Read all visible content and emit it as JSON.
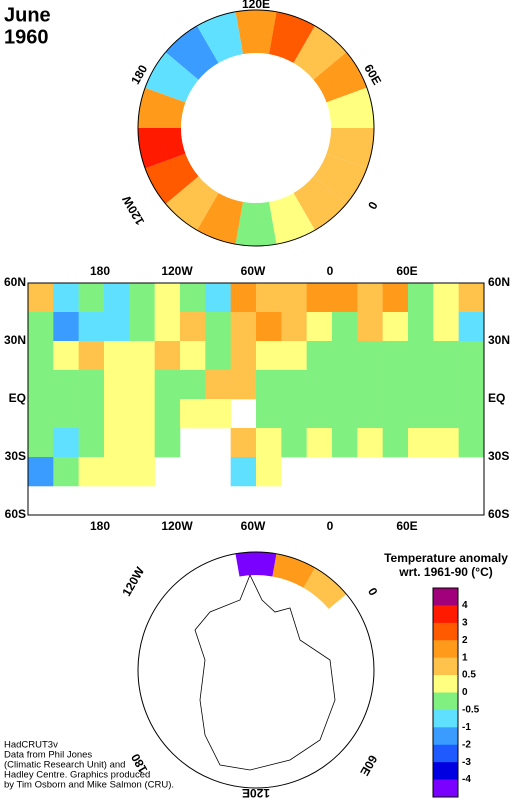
{
  "header": {
    "title": [
      "June",
      "1960"
    ]
  },
  "legend": {
    "title": [
      "Temperature anomaly",
      "wrt. 1961-90  (°C)"
    ],
    "levels": [
      4,
      3,
      2,
      1,
      0.5,
      0,
      -0.5,
      -1,
      -2,
      -3,
      -4
    ],
    "colors": [
      "#a0007a",
      "#ff1a00",
      "#ff5a00",
      "#ff9a1a",
      "#ffc24a",
      "#ffff80",
      "#80f080",
      "#60e0ff",
      "#3a9cff",
      "#1e5aff",
      "#0000e0",
      "#7a00ff"
    ]
  },
  "north_map": {
    "labels": [
      "120E",
      "60E",
      "0",
      "120W",
      "180"
    ],
    "ring": [
      1,
      2,
      0.5,
      1,
      0.3,
      0.5,
      0.5,
      0.7,
      0.3,
      -0.3,
      1.5,
      0.5,
      2,
      3,
      1,
      -0.7,
      -1.2,
      -0.7
    ]
  },
  "main_map": {
    "lon_labels": [
      "180",
      "120W",
      "60W",
      "0",
      "60E"
    ],
    "lat_labels": [
      "60N",
      "30N",
      "EQ",
      "30S",
      "60S"
    ],
    "cells": [
      [
        0.5,
        -1,
        -0.5,
        -1,
        -0.5,
        0.3,
        -0.5,
        -1,
        1,
        0.7,
        0.7,
        1.2,
        1.2,
        0.7,
        1.2,
        -0.5,
        0.3,
        0.7
      ],
      [
        -0.5,
        -1.2,
        -1,
        -1,
        -0.5,
        0.3,
        0.7,
        -0.5,
        0.7,
        1.2,
        0.7,
        0.3,
        -0.5,
        0.7,
        0.3,
        -0.5,
        0.3,
        -1
      ],
      [
        -0.3,
        0.3,
        0.7,
        0.3,
        0.3,
        0.7,
        0.3,
        -0.3,
        0.7,
        0.3,
        0.3,
        -0.5,
        -0.3,
        -0.5,
        -0.5,
        -0.3,
        -0.5,
        -0.5
      ],
      [
        -0.3,
        -0.3,
        -0.5,
        0.3,
        0.3,
        -0.3,
        -0.3,
        0.7,
        0.7,
        -0.3,
        -0.5,
        -0.3,
        -0.5,
        -0.3,
        -0.3,
        -0.3,
        -0.5,
        -0.3
      ],
      [
        -0.3,
        -0.5,
        -0.5,
        0.3,
        0.3,
        -0.3,
        0.3,
        0.3,
        null,
        -0.3,
        -0.5,
        -0.5,
        -0.3,
        -0.5,
        -0.5,
        -0.3,
        -0.5,
        -0.3
      ],
      [
        -0.5,
        -1,
        -0.5,
        0.3,
        0.3,
        -0.3,
        null,
        null,
        0.7,
        0.3,
        -0.5,
        0.3,
        -0.5,
        0.3,
        -0.3,
        0.3,
        0.3,
        -0.3
      ],
      [
        -1.2,
        -0.3,
        0.3,
        0.3,
        0.3,
        null,
        null,
        null,
        -1,
        0.3,
        null,
        null,
        null,
        null,
        null,
        null,
        null,
        null
      ],
      [
        null,
        null,
        null,
        null,
        null,
        null,
        null,
        null,
        null,
        null,
        null,
        null,
        null,
        null,
        null,
        null,
        null,
        null
      ]
    ]
  },
  "south_map": {
    "labels": [
      "120W",
      "0",
      "180",
      "60E",
      "120E"
    ],
    "ring": [
      null,
      null,
      null,
      null,
      null,
      null,
      null,
      null,
      null,
      -4.5,
      1.2,
      0.7,
      null,
      null,
      null,
      null,
      null,
      null
    ]
  },
  "credits": [
    "HadCRUT3v",
    "Data from Phil Jones",
    "(Climatic Research Unit) and",
    "Hadley Centre.  Graphics produced",
    "by Tim Osborn and Mike Salmon (CRU)."
  ]
}
